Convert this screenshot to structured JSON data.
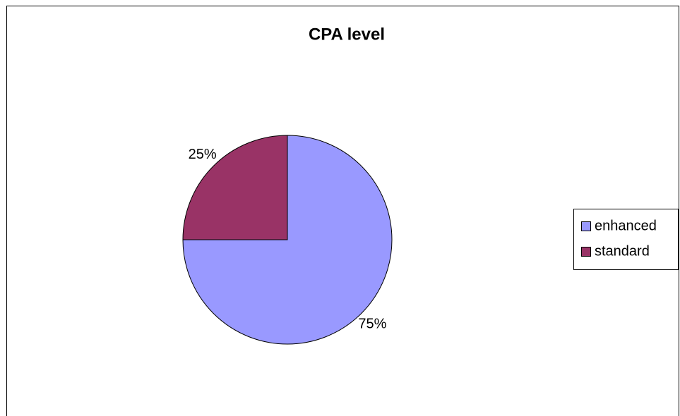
{
  "chart_data": {
    "type": "pie",
    "title": "CPA level",
    "categories": [
      "enhanced",
      "standard"
    ],
    "values": [
      75,
      25
    ],
    "value_labels": [
      "75%",
      "25%"
    ],
    "colors": [
      "#9999ff",
      "#993366"
    ],
    "legend": "right"
  }
}
